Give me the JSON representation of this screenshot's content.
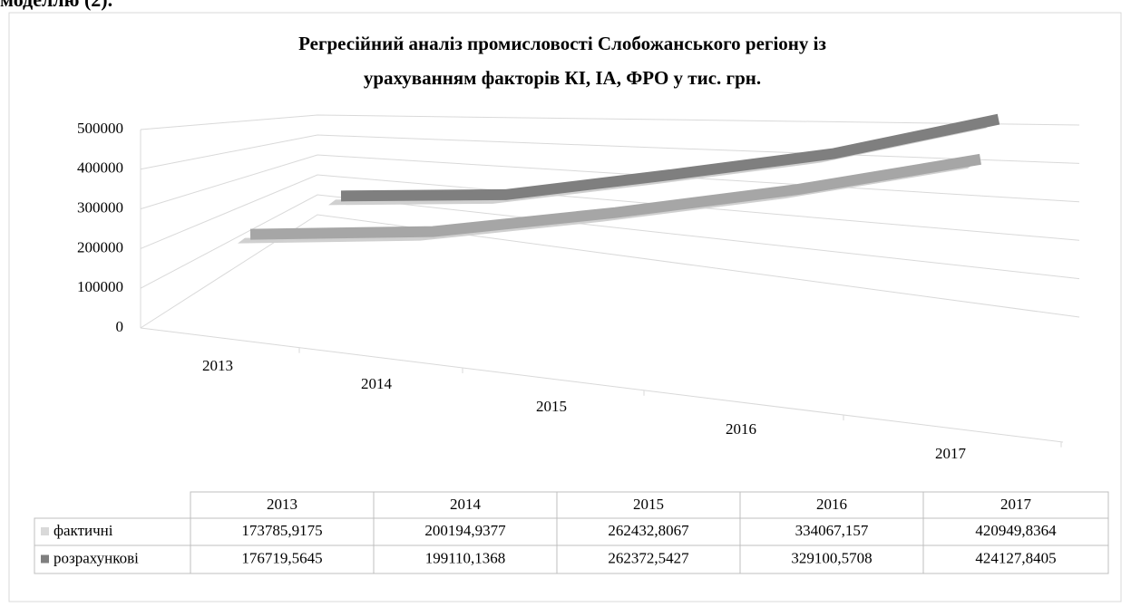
{
  "header_text": "моделлю (2).",
  "chart_data": {
    "type": "line",
    "title": "Регресійний аналіз промисловості Слобожанського регіону із урахуванням факторів КІ, ІА, ФРО у тис. грн.",
    "categories": [
      "2013",
      "2014",
      "2015",
      "2016",
      "2017"
    ],
    "series": [
      {
        "name": "фактичні",
        "color": "#a6a6a6",
        "values": [
          173785.9175,
          200194.9377,
          262432.8067,
          334067.157,
          420949.8364
        ],
        "value_labels": [
          "173785,9175",
          "200194,9377",
          "262432,8067",
          "334067,157",
          "420949,8364"
        ]
      },
      {
        "name": "розрахункові",
        "color": "#7f7f7f",
        "values": [
          176719.5645,
          199110.1368,
          262372.5427,
          329100.5708,
          424127.8405
        ],
        "value_labels": [
          "176719,5645",
          "199110,1368",
          "262372,5427",
          "329100,5708",
          "424127,8405"
        ]
      }
    ],
    "ylim": [
      0,
      500000
    ],
    "yticks": [
      0,
      100000,
      200000,
      300000,
      400000,
      500000
    ],
    "grid": true,
    "data_table": true
  }
}
